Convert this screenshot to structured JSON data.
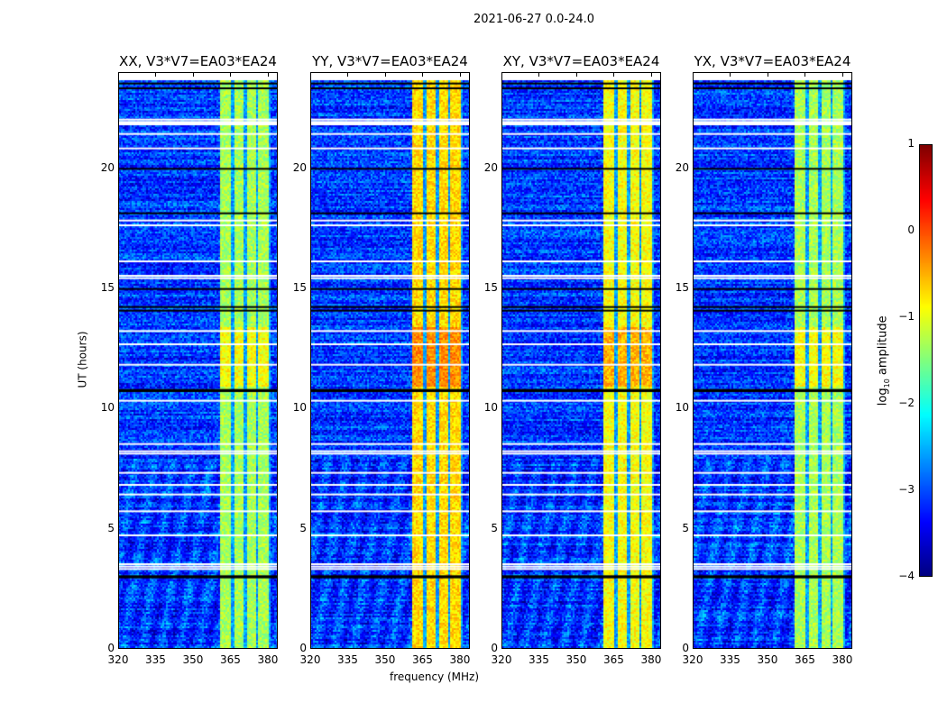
{
  "chart_data": {
    "type": "heatmap",
    "title": "2021-06-27 0.0-24.0",
    "xlabel": "frequency (MHz)",
    "ylabel": "UT (hours)",
    "xlim": [
      320,
      384
    ],
    "ylim": [
      0,
      24
    ],
    "xticks": [
      "320",
      "335",
      "350",
      "365",
      "380"
    ],
    "xtick_values": [
      320,
      335,
      350,
      365,
      380
    ],
    "yticks": [
      "0",
      "5",
      "10",
      "15",
      "20"
    ],
    "ytick_values": [
      0,
      5,
      10,
      15,
      20
    ],
    "colormap": "jet",
    "colorbar": {
      "label_main": "log",
      "label_sub": "10",
      "label_rest": " amplitude",
      "range": [
        -4,
        1
      ],
      "ticks": [
        "1",
        "0",
        "−1",
        "−2",
        "−3",
        "−4"
      ],
      "tick_values": [
        1,
        0,
        -1,
        -2,
        -3,
        -4
      ]
    },
    "panels": [
      {
        "title": "XX, V3*V7=EA03*EA24",
        "band_level": -1.3
      },
      {
        "title": "YY, V3*V7=EA03*EA24",
        "band_level": -0.7
      },
      {
        "title": "XY, V3*V7=EA03*EA24",
        "band_level": -0.9
      },
      {
        "title": "YX, V3*V7=EA03*EA24",
        "band_level": -1.3
      }
    ],
    "background_level": -3.1,
    "rfi_band_mhz": [
      360.3,
      380.3
    ],
    "band_gaps_mhz": [
      364.8,
      369.8,
      374.6,
      379.6
    ],
    "flagged_hours_white": [
      22.1,
      21.9,
      21.5,
      20.9,
      17.9,
      17.7,
      16.2,
      15.6,
      15.5,
      13.3,
      12.75,
      11.9,
      10.4,
      8.6,
      8.3,
      8.2,
      7.4,
      6.9,
      6.5,
      5.8,
      4.8,
      3.6,
      3.5,
      3.4
    ],
    "flagged_hours_black": [
      23.6,
      23.4,
      20.05,
      18.2,
      15.05,
      14.3,
      14.15,
      10.85,
      10.8,
      3.1,
      3.05
    ]
  }
}
